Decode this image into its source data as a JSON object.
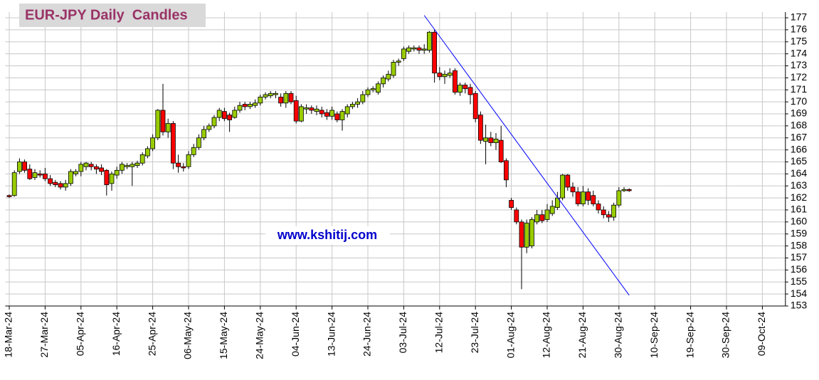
{
  "chart_data": {
    "type": "candlestick",
    "title": "EUR-JPY Daily  Candles",
    "annotation": "www.kshitij.com",
    "categories": [
      "18-Mar-24",
      null,
      null,
      null,
      null,
      null,
      null,
      "27-Mar-24",
      null,
      null,
      null,
      null,
      null,
      null,
      "05-Apr-24",
      null,
      null,
      null,
      null,
      null,
      null,
      "16-Apr-24",
      null,
      null,
      null,
      null,
      null,
      null,
      "25-Apr-24",
      null,
      null,
      null,
      null,
      null,
      null,
      "06-May-24",
      null,
      null,
      null,
      null,
      null,
      null,
      "15-May-24",
      null,
      null,
      null,
      null,
      null,
      null,
      "24-May-24",
      null,
      null,
      null,
      null,
      null,
      null,
      "04-Jun-24",
      null,
      null,
      null,
      null,
      null,
      null,
      "13-Jun-24",
      null,
      null,
      null,
      null,
      null,
      null,
      "24-Jun-24",
      null,
      null,
      null,
      null,
      null,
      null,
      "03-Jul-24",
      null,
      null,
      null,
      null,
      null,
      null,
      "12-Jul-24",
      null,
      null,
      null,
      null,
      null,
      null,
      "23-Jul-24",
      null,
      null,
      null,
      null,
      null,
      null,
      "01-Aug-24",
      null,
      null,
      null,
      null,
      null,
      null,
      "12-Aug-24",
      null,
      null,
      null,
      null,
      null,
      null,
      "21-Aug-24",
      null,
      null,
      null,
      null,
      null,
      null,
      "30-Aug-24",
      null,
      null,
      null,
      null,
      null,
      null,
      "10-Sep-24",
      null,
      null,
      null,
      null,
      null,
      null,
      "19-Sep-24",
      null,
      null,
      null,
      null,
      null,
      null,
      "30-Sep-24",
      null,
      null,
      null,
      null,
      null,
      null,
      "09-Oct-24",
      null,
      null,
      null,
      null
    ],
    "open": [
      162.2,
      162.2,
      164.2,
      165.0,
      164.4,
      163.7,
      164.0,
      164.0,
      163.6,
      163.3,
      163.2,
      162.9,
      163.2,
      164.0,
      164.2,
      164.6,
      164.8,
      164.6,
      164.5,
      164.3,
      163.2,
      163.9,
      164.3,
      164.6,
      164.6,
      164.7,
      164.9,
      165.5,
      166.1,
      167.0,
      169.3,
      167.5,
      168.2,
      164.9,
      164.6,
      164.6,
      165.6,
      166.2,
      167.0,
      167.7,
      168.0,
      168.7,
      169.2,
      168.9,
      168.7,
      169.3,
      169.8,
      169.6,
      169.7,
      169.9,
      170.4,
      170.5,
      170.6,
      170.4,
      169.9,
      170.7,
      170.1,
      168.4,
      169.4,
      169.5,
      169.2,
      169.3,
      169.1,
      168.8,
      169.0,
      168.5,
      169.0,
      169.6,
      169.8,
      170.0,
      170.6,
      171.0,
      170.8,
      171.5,
      171.9,
      172.2,
      173.3,
      173.6,
      174.2,
      174.4,
      174.5,
      174.3,
      174.3,
      175.8,
      172.4,
      172.1,
      172.2,
      172.6,
      170.8,
      171.4,
      171.2,
      170.7,
      168.9,
      166.7,
      167.0,
      166.6,
      166.8,
      165.1,
      161.8,
      161.0,
      160.0,
      157.9,
      158.0,
      160.0,
      160.6,
      160.2,
      160.7,
      161.2,
      162.0,
      163.9,
      162.9,
      162.5,
      161.5,
      162.5,
      162.2,
      161.5,
      161.0,
      160.6,
      160.4,
      161.4,
      162.6,
      162.7,
      null,
      null,
      null,
      null,
      null,
      null,
      null,
      null,
      null,
      null,
      null,
      null,
      null,
      null,
      null,
      null,
      null,
      null,
      null,
      null,
      null,
      null,
      null,
      null,
      null,
      null,
      null,
      null,
      null,
      null
    ],
    "high": [
      162.3,
      164.3,
      165.3,
      165.2,
      164.8,
      164.4,
      164.3,
      164.5,
      163.9,
      163.5,
      163.4,
      163.5,
      164.4,
      164.4,
      165.0,
      165.0,
      165.0,
      164.8,
      164.8,
      164.4,
      164.2,
      164.6,
      165.0,
      164.9,
      165.0,
      165.1,
      165.8,
      166.3,
      167.3,
      169.4,
      171.5,
      168.6,
      168.4,
      165.6,
      164.9,
      165.9,
      166.5,
      167.3,
      168.0,
      168.2,
      168.9,
      169.5,
      169.5,
      169.1,
      169.6,
      170.0,
      170.0,
      170.0,
      170.2,
      170.6,
      170.8,
      170.9,
      170.9,
      170.7,
      170.9,
      170.9,
      170.5,
      169.8,
      169.8,
      169.7,
      169.7,
      169.6,
      169.4,
      169.6,
      169.2,
      169.4,
      169.8,
      170.0,
      170.3,
      170.9,
      171.2,
      171.3,
      171.7,
      172.2,
      172.6,
      173.5,
      173.6,
      174.6,
      174.7,
      174.7,
      174.7,
      174.8,
      175.9,
      176.0,
      172.9,
      172.6,
      172.8,
      172.8,
      171.6,
      171.6,
      171.5,
      170.9,
      169.2,
      168.1,
      167.5,
      167.4,
      168.0,
      165.3,
      162.0,
      161.2,
      160.2,
      160.2,
      160.4,
      161.0,
      161.0,
      161.5,
      161.8,
      162.5,
      164.0,
      164.0,
      163.3,
      162.9,
      163.0,
      162.8,
      162.6,
      161.8,
      161.3,
      160.9,
      161.6,
      162.9,
      162.9,
      162.8,
      null,
      null,
      null,
      null,
      null,
      null,
      null,
      null,
      null,
      null,
      null,
      null,
      null,
      null,
      null,
      null,
      null,
      null,
      null,
      null,
      null,
      null,
      null,
      null,
      null,
      null,
      null,
      null,
      null,
      null
    ],
    "low": [
      162.0,
      162.1,
      164.0,
      164.1,
      163.5,
      163.5,
      163.7,
      163.4,
      163.0,
      162.9,
      162.7,
      162.6,
      163.0,
      163.8,
      163.8,
      164.3,
      164.3,
      164.0,
      163.9,
      162.2,
      162.6,
      163.6,
      164.0,
      164.4,
      163.0,
      164.5,
      164.7,
      165.3,
      165.9,
      166.8,
      167.2,
      167.0,
      164.4,
      164.1,
      164.2,
      164.4,
      165.4,
      166.0,
      166.8,
      167.5,
      167.8,
      168.4,
      168.4,
      167.5,
      168.6,
      169.1,
      169.3,
      169.4,
      169.5,
      169.7,
      170.2,
      170.3,
      170.3,
      169.6,
      169.5,
      169.8,
      168.2,
      168.3,
      169.0,
      169.0,
      168.9,
      168.7,
      168.5,
      168.5,
      168.3,
      167.6,
      168.7,
      169.4,
      169.5,
      169.8,
      170.4,
      170.8,
      170.6,
      171.2,
      171.7,
      172.0,
      173.0,
      173.4,
      174.0,
      174.2,
      174.0,
      174.0,
      174.1,
      171.6,
      171.8,
      171.5,
      172.0,
      170.6,
      170.5,
      170.7,
      169.8,
      168.3,
      166.5,
      164.8,
      166.3,
      166.0,
      164.9,
      162.9,
      161.0,
      159.8,
      154.4,
      157.4,
      157.8,
      159.8,
      159.9,
      160.0,
      160.5,
      161.0,
      161.8,
      162.6,
      162.1,
      161.3,
      161.3,
      161.4,
      161.3,
      160.7,
      160.3,
      160.0,
      160.1,
      161.2,
      162.5,
      162.5,
      null,
      null,
      null,
      null,
      null,
      null,
      null,
      null,
      null,
      null,
      null,
      null,
      null,
      null,
      null,
      null,
      null,
      null,
      null,
      null,
      null,
      null,
      null,
      null,
      null,
      null,
      null,
      null,
      null,
      null
    ],
    "close": [
      162.1,
      164.1,
      165.0,
      164.3,
      163.6,
      164.1,
      163.9,
      163.6,
      163.2,
      163.1,
      162.9,
      163.2,
      164.2,
      164.2,
      164.8,
      164.9,
      164.6,
      164.4,
      164.2,
      163.1,
      164.0,
      164.3,
      164.8,
      164.7,
      164.8,
      164.9,
      165.6,
      166.1,
      167.0,
      169.3,
      167.5,
      168.2,
      164.9,
      164.6,
      164.5,
      165.6,
      166.2,
      167.0,
      167.7,
      168.0,
      168.7,
      169.3,
      168.6,
      168.5,
      169.3,
      169.7,
      169.6,
      169.8,
      169.9,
      170.4,
      170.6,
      170.7,
      170.7,
      169.9,
      170.7,
      170.0,
      168.4,
      169.6,
      169.5,
      169.3,
      169.4,
      169.0,
      168.8,
      169.3,
      168.5,
      169.2,
      169.6,
      169.8,
      170.0,
      170.6,
      171.0,
      171.1,
      171.5,
      172.0,
      172.3,
      173.3,
      173.4,
      174.4,
      174.5,
      174.5,
      174.3,
      174.4,
      175.8,
      172.4,
      172.1,
      172.3,
      172.4,
      170.8,
      171.4,
      171.1,
      170.6,
      168.6,
      166.8,
      167.0,
      166.6,
      166.9,
      165.0,
      163.5,
      161.2,
      160.0,
      157.9,
      159.9,
      160.2,
      160.6,
      160.1,
      161.0,
      161.3,
      162.0,
      163.9,
      162.9,
      162.5,
      161.5,
      162.5,
      161.8,
      161.5,
      161.0,
      160.6,
      160.4,
      161.4,
      162.6,
      162.7,
      162.6,
      null,
      null,
      null,
      null,
      null,
      null,
      null,
      null,
      null,
      null,
      null,
      null,
      null,
      null,
      null,
      null,
      null,
      null,
      null,
      null,
      null,
      null,
      null,
      null,
      null,
      null,
      null,
      null,
      null,
      null
    ],
    "up_color": "#99cc00",
    "down_color": "#ff0000",
    "trendline": {
      "start": {
        "index": 81,
        "value": 177.2
      },
      "end": {
        "index": 121,
        "value": 153.9
      },
      "color": "#0000ff"
    },
    "ylim": [
      153,
      177
    ],
    "yticks": [
      153,
      154,
      155,
      156,
      157,
      158,
      159,
      160,
      161,
      162,
      163,
      164,
      165,
      166,
      167,
      168,
      169,
      170,
      171,
      172,
      173,
      174,
      175,
      176,
      177
    ],
    "grid": true
  }
}
